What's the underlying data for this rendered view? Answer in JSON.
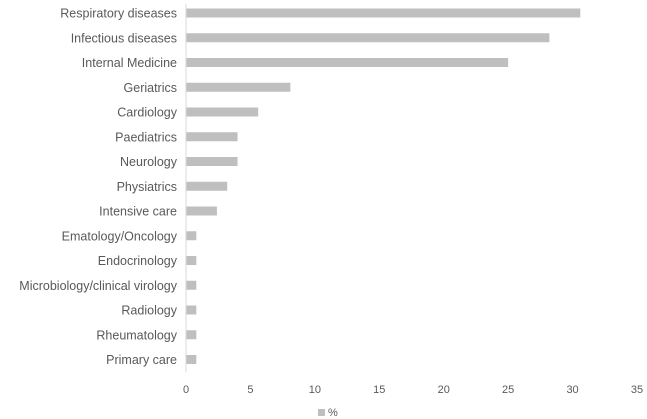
{
  "chart_data": {
    "type": "bar",
    "orientation": "horizontal",
    "categories": [
      "Respiratory diseases",
      "Infectious diseases",
      "Internal Medicine",
      "Geriatrics",
      "Cardiology",
      "Paediatrics",
      "Neurology",
      "Physiatrics",
      "Intensive care",
      "Ematology/Oncology",
      "Endocrinology",
      "Microbiology/clinical virology",
      "Radiology",
      "Rheumatology",
      "Primary care"
    ],
    "series": [
      {
        "name": "%",
        "values": [
          30.6,
          28.2,
          25.0,
          8.1,
          5.6,
          4.0,
          4.0,
          3.2,
          2.4,
          0.8,
          0.8,
          0.8,
          0.8,
          0.8,
          0.8
        ]
      }
    ],
    "xlim": [
      0,
      35
    ],
    "xticks": [
      0,
      5,
      10,
      15,
      20,
      25,
      30,
      35
    ],
    "grid": false,
    "legend": "bottom",
    "colors": {
      "bar": "#BFBFBF",
      "axis": "#D9D9D9",
      "text": "#595959"
    }
  }
}
